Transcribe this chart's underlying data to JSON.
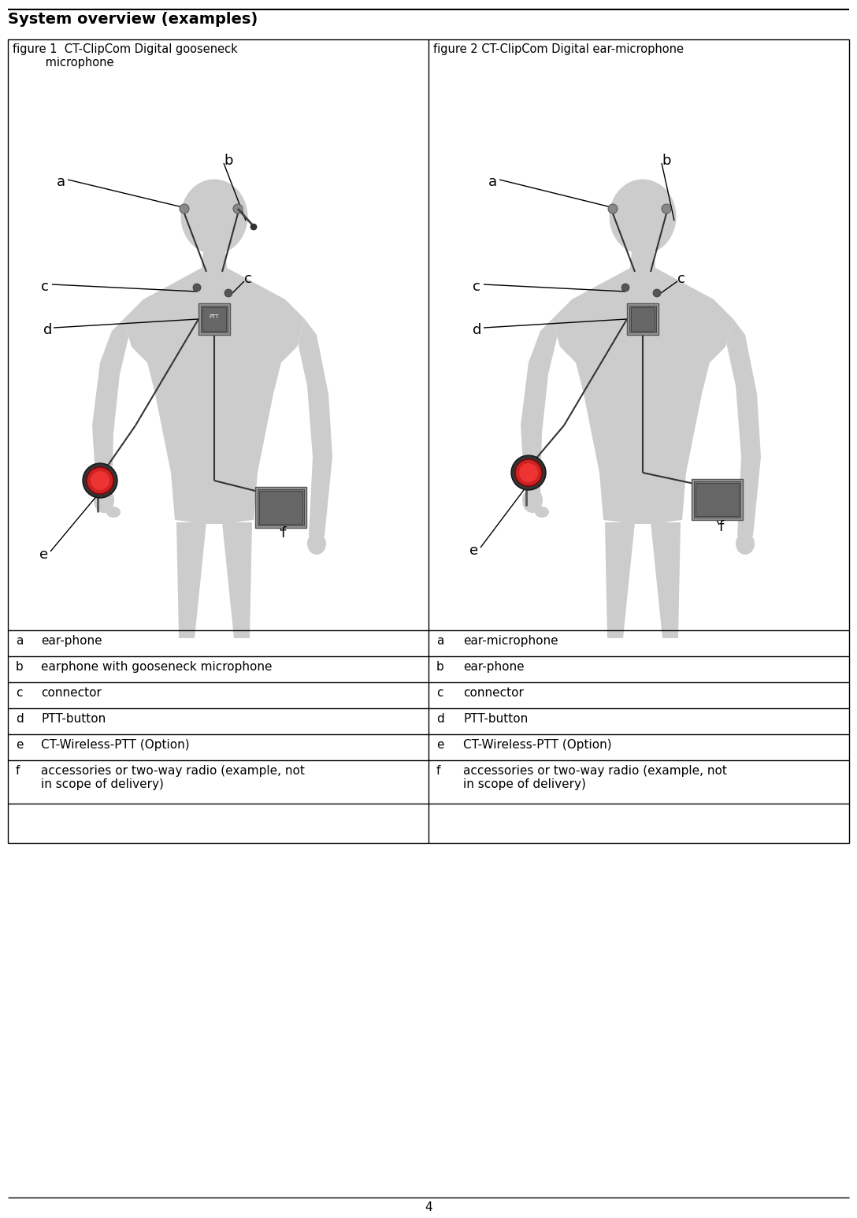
{
  "title": "System overview (examples)",
  "fig1_cap1": "figure 1  CT-ClipCom Digital gooseneck",
  "fig1_cap2": "         microphone",
  "fig2_cap": "figure 2 CT-ClipCom Digital ear-microphone",
  "left_labels": [
    [
      "a",
      "ear-phone"
    ],
    [
      "b",
      "earphone with gooseneck microphone"
    ],
    [
      "c",
      "connector"
    ],
    [
      "d",
      "PTT-button"
    ],
    [
      "e",
      "CT-Wireless-PTT (Option)"
    ],
    [
      "f",
      "accessories or two-way radio (example, not\nin scope of delivery)"
    ]
  ],
  "right_labels": [
    [
      "a",
      "ear-microphone"
    ],
    [
      "b",
      "ear-phone"
    ],
    [
      "c",
      "connector"
    ],
    [
      "d",
      "PTT-button"
    ],
    [
      "e",
      "CT-Wireless-PTT (Option)"
    ],
    [
      "f",
      "accessories or two-way radio (example, not\nin scope of delivery)"
    ]
  ],
  "page_number": "4",
  "bg_color": "#ffffff",
  "body_color": "#cccccc",
  "device_color": "#888888",
  "device_dark": "#555555",
  "ptt_red": "#cc2222"
}
